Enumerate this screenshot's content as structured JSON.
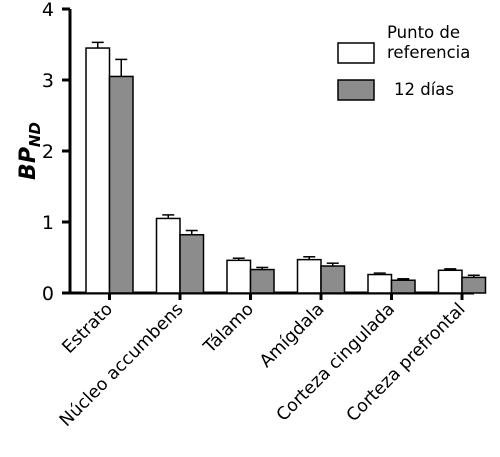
{
  "chart_data": {
    "type": "bar",
    "ylabel": "BP",
    "ylabel_subscript": "ND",
    "ylim": [
      0,
      4
    ],
    "yticks": [
      "0",
      "1",
      "2",
      "3",
      "4"
    ],
    "categories": [
      "Estrato",
      "Núcleo accumbens",
      "Tálamo",
      "Amígdala",
      "Corteza cingulada",
      "Corteza prefrontal"
    ],
    "series": [
      {
        "name": "Punto de referencia",
        "values": [
          3.45,
          1.05,
          0.46,
          0.47,
          0.26,
          0.32
        ],
        "errors": [
          0.08,
          0.05,
          0.03,
          0.04,
          0.02,
          0.02
        ],
        "color": "#ffffff"
      },
      {
        "name": "12 días",
        "values": [
          3.05,
          0.82,
          0.33,
          0.38,
          0.18,
          0.22
        ],
        "errors": [
          0.24,
          0.06,
          0.03,
          0.04,
          0.02,
          0.03
        ],
        "color": "#8c8c8c"
      }
    ],
    "legend": {
      "position": "top-right",
      "lines": [
        [
          "Punto de",
          "referencia"
        ],
        [
          "12 días"
        ]
      ]
    },
    "grid": false
  }
}
